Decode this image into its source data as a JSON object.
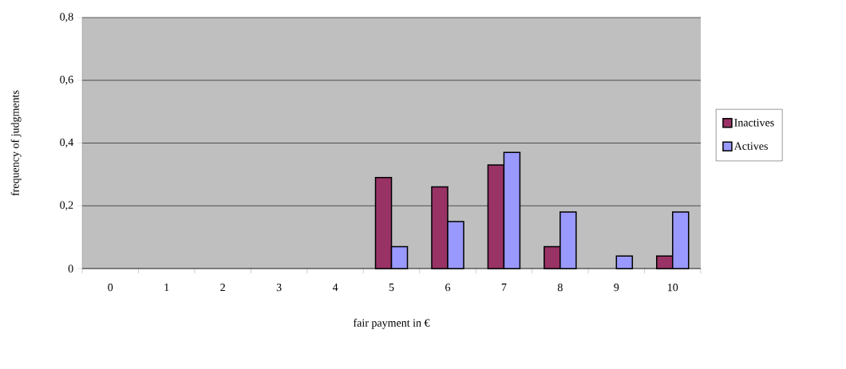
{
  "chart_data": {
    "type": "bar",
    "xlabel": "fair payment in €",
    "ylabel": "frequency of judgments",
    "categories": [
      "0",
      "1",
      "2",
      "3",
      "4",
      "5",
      "6",
      "7",
      "8",
      "9",
      "10"
    ],
    "series": [
      {
        "name": "Inactives",
        "color": "#993366",
        "values": [
          0,
          0,
          0,
          0,
          0,
          0.29,
          0.26,
          0.33,
          0.07,
          0,
          0.04
        ]
      },
      {
        "name": "Actives",
        "color": "#9999ff",
        "values": [
          0,
          0,
          0,
          0,
          0,
          0.07,
          0.15,
          0.37,
          0.18,
          0.04,
          0.18
        ]
      }
    ],
    "ylim": [
      0,
      0.8
    ],
    "yticks": [
      0,
      {
        "value": 0.2,
        "label": "0,2"
      },
      {
        "value": 0.4,
        "label": "0,4"
      },
      {
        "value": 0.6,
        "label": "0,6"
      },
      {
        "value": 0.8,
        "label": "0,8"
      }
    ],
    "grid": "y",
    "legend": "right"
  }
}
